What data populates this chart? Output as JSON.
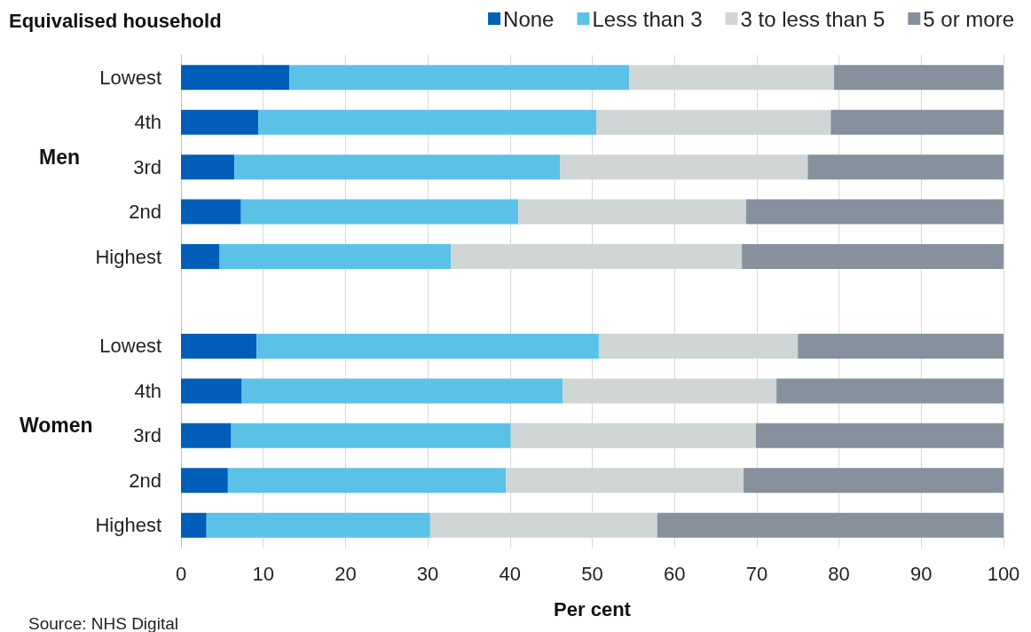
{
  "chart_data": {
    "type": "bar",
    "orientation": "horizontal",
    "stacked": true,
    "ylabel": "Equivalised household",
    "xlabel": "Per cent",
    "categories": [
      "Lowest",
      "4th",
      "3rd",
      "2nd",
      "Highest",
      null,
      "Lowest",
      "4th",
      "3rd",
      "2nd",
      "Highest"
    ],
    "series": [
      {
        "name": "None",
        "color": "#005eb8",
        "values": [
          13.2,
          9.4,
          6.5,
          7.3,
          4.7,
          null,
          9.2,
          7.4,
          6.1,
          5.7,
          3.1
        ]
      },
      {
        "name": "Less than 3",
        "color": "#5bc2e7",
        "values": [
          41.3,
          41.1,
          39.6,
          33.7,
          28.1,
          null,
          41.6,
          39.0,
          34.0,
          33.8,
          27.2
        ]
      },
      {
        "name": "3 to less than 5",
        "color": "#d0d5d6",
        "values": [
          24.9,
          28.5,
          30.1,
          27.7,
          35.4,
          null,
          24.2,
          26.0,
          29.8,
          28.9,
          27.6
        ]
      },
      {
        "name": "5 or more",
        "color": "#86919d",
        "values": [
          20.6,
          21.0,
          23.8,
          31.3,
          31.8,
          null,
          25.0,
          27.6,
          30.1,
          31.6,
          42.1
        ]
      }
    ],
    "xlim": [
      0,
      100
    ],
    "xticks": [
      0,
      10,
      20,
      30,
      40,
      50,
      60,
      70,
      80,
      90,
      100
    ],
    "grid": "x",
    "legend": "top right",
    "annotations": [
      "Men",
      "Women",
      "Source: NHS Digital"
    ]
  }
}
